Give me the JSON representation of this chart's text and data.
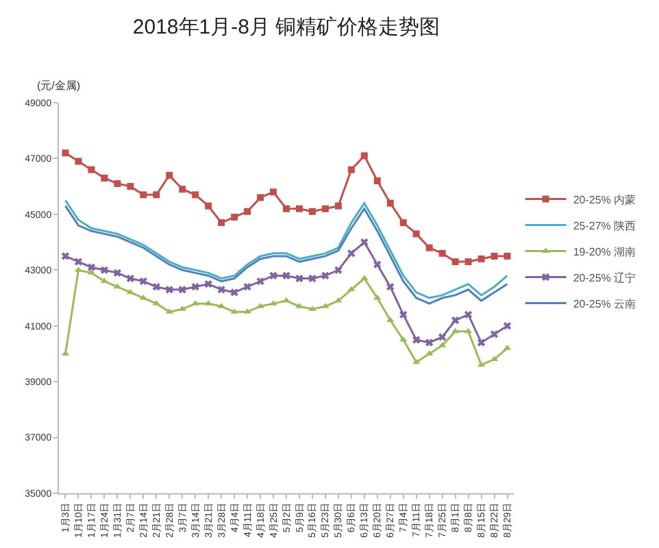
{
  "chart_data": {
    "type": "line",
    "title": "2018年1月-8月 铜精矿价格走势图",
    "ylabel": "(元/金属)",
    "categories": [
      "1月3日",
      "1月10日",
      "1月17日",
      "1月24日",
      "1月31日",
      "2月7日",
      "2月14日",
      "2月21日",
      "2月28日",
      "3月7日",
      "3月14日",
      "3月21日",
      "3月28日",
      "4月4日",
      "4月11日",
      "4月18日",
      "4月25日",
      "5月2日",
      "5月9日",
      "5月16日",
      "5月23日",
      "5月30日",
      "6月6日",
      "6月13日",
      "6月20日",
      "6月27日",
      "7月4日",
      "7月11日",
      "7月18日",
      "7月25日",
      "8月1日",
      "8月8日",
      "8月15日",
      "8月22日",
      "8月29日"
    ],
    "ylim": [
      35000,
      49000
    ],
    "yticks": [
      35000,
      37000,
      39000,
      41000,
      43000,
      45000,
      47000,
      49000
    ],
    "grid": false,
    "legend": "right",
    "line_style": "solid",
    "series": [
      {
        "name": "20-25% 内蒙",
        "color": "#c0504d",
        "marker": "square",
        "values": [
          47200,
          46900,
          46600,
          46300,
          46100,
          46000,
          45700,
          45700,
          46400,
          45900,
          45700,
          45300,
          44700,
          44900,
          45100,
          45600,
          45800,
          45200,
          45200,
          45100,
          45200,
          45300,
          46600,
          47100,
          46200,
          45400,
          44700,
          44300,
          43800,
          43600,
          43300,
          43300,
          43400,
          43500,
          43500
        ]
      },
      {
        "name": "25-27% 陕西",
        "color": "#4bacc6",
        "marker": "none",
        "values": [
          45500,
          44800,
          44500,
          44400,
          44300,
          44100,
          43900,
          43600,
          43300,
          43100,
          43000,
          42900,
          42700,
          42800,
          43200,
          43500,
          43600,
          43600,
          43400,
          43500,
          43600,
          43800,
          44700,
          45400,
          44600,
          43700,
          42800,
          42200,
          42000,
          42100,
          42300,
          42500,
          42100,
          42400,
          42800
        ]
      },
      {
        "name": "19-20% 湖南",
        "color": "#9bbb59",
        "marker": "triangle",
        "values": [
          40000,
          43000,
          42900,
          42600,
          42400,
          42200,
          42000,
          41800,
          41500,
          41600,
          41800,
          41800,
          41700,
          41500,
          41500,
          41700,
          41800,
          41900,
          41700,
          41600,
          41700,
          41900,
          42300,
          42700,
          42000,
          41200,
          40500,
          39700,
          40000,
          40300,
          40800,
          40800,
          39600,
          39800,
          40200
        ]
      },
      {
        "name": "20-25% 辽宁",
        "color": "#8064a2",
        "marker": "cross",
        "values": [
          43500,
          43300,
          43100,
          43000,
          42900,
          42700,
          42600,
          42400,
          42300,
          42300,
          42400,
          42500,
          42300,
          42200,
          42400,
          42600,
          42800,
          42800,
          42700,
          42700,
          42800,
          43000,
          43600,
          44000,
          43200,
          42400,
          41400,
          40500,
          40400,
          40600,
          41200,
          41400,
          40400,
          40700,
          41000
        ]
      },
      {
        "name": "20-25% 云南",
        "color": "#4f81bd",
        "marker": "none",
        "values": [
          45300,
          44600,
          44400,
          44300,
          44200,
          44000,
          43800,
          43500,
          43200,
          43000,
          42900,
          42800,
          42600,
          42700,
          43100,
          43400,
          43500,
          43500,
          43300,
          43400,
          43500,
          43700,
          44500,
          45200,
          44400,
          43500,
          42600,
          42000,
          41800,
          42000,
          42100,
          42300,
          41900,
          42200,
          42500
        ]
      }
    ]
  }
}
